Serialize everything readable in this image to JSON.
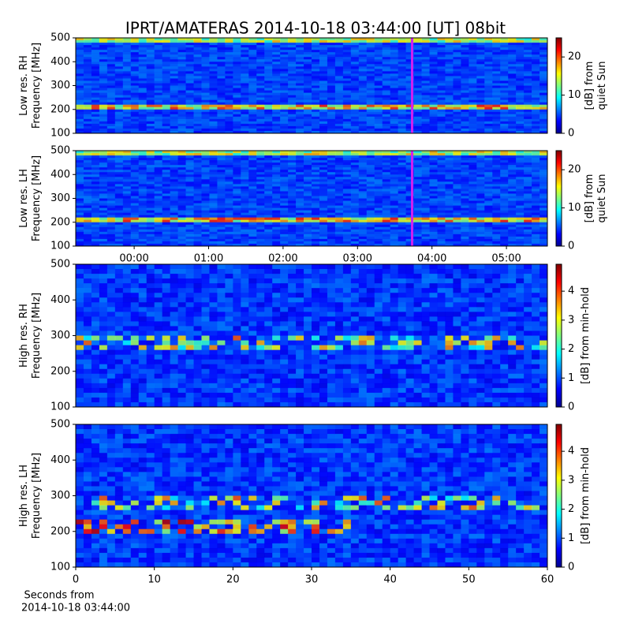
{
  "title": "IPRT/AMATERAS 2014-10-18 03:44:00 [UT]   08bit",
  "x_caption": [
    "Seconds from",
    "2014-10-18 03:44:00"
  ],
  "chart_data": [
    {
      "type": "heatmap",
      "ylabel": [
        "Low res. RH",
        "Frequency [MHz]"
      ],
      "ylim": [
        100,
        500
      ],
      "yticks": [
        100,
        200,
        300,
        400,
        500
      ],
      "xlim": [
        -0.785,
        5.55
      ],
      "highlight_x": 3.733,
      "highlight_color": "#d020f0",
      "colorbar": {
        "label": [
          "[dB] from",
          "quiet Sun"
        ],
        "lim": [
          0,
          25
        ],
        "ticks": [
          0,
          10,
          20
        ]
      }
    },
    {
      "type": "heatmap",
      "ylabel": [
        "Low res. LH",
        "Frequency [MHz]"
      ],
      "ylim": [
        100,
        500
      ],
      "yticks": [
        100,
        200,
        300,
        400,
        500
      ],
      "xlim": [
        -0.785,
        5.55
      ],
      "highlight_x": 3.733,
      "highlight_color": "#d020f0",
      "xticks": [
        {
          "value": 0,
          "label": "00:00"
        },
        {
          "value": 1,
          "label": "01:00"
        },
        {
          "value": 2,
          "label": "02:00"
        },
        {
          "value": 3,
          "label": "03:00"
        },
        {
          "value": 4,
          "label": "04:00"
        },
        {
          "value": 5,
          "label": "05:00"
        }
      ],
      "colorbar": {
        "label": [
          "[dB] from",
          "quiet Sun"
        ],
        "lim": [
          0,
          25
        ],
        "ticks": [
          0,
          10,
          20
        ]
      }
    },
    {
      "type": "heatmap",
      "ylabel": [
        "High res. RH",
        "Frequency [MHz]"
      ],
      "ylim": [
        100,
        500
      ],
      "yticks": [
        100,
        200,
        300,
        400,
        500
      ],
      "xlim": [
        0,
        60
      ],
      "colorbar": {
        "label": [
          "[dB] from min-hold"
        ],
        "lim": [
          0,
          4.93
        ],
        "ticks": [
          0,
          1,
          2,
          3,
          4
        ]
      }
    },
    {
      "type": "heatmap",
      "ylabel": [
        "High res. LH",
        "Frequency [MHz]"
      ],
      "ylim": [
        100,
        500
      ],
      "yticks": [
        100,
        200,
        300,
        400,
        500
      ],
      "xlim": [
        0,
        60
      ],
      "xticks": [
        0,
        10,
        20,
        30,
        40,
        50,
        60
      ],
      "colorbar": {
        "label": [
          "[dB] from min-hold"
        ],
        "lim": [
          0,
          4.93
        ],
        "ticks": [
          0,
          1,
          2,
          3,
          4
        ]
      }
    }
  ]
}
